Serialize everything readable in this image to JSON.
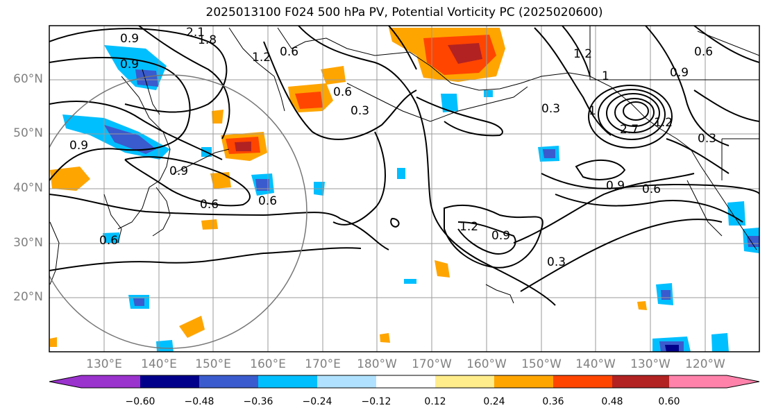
{
  "title": "2025013100 F024 500 hPa PV, Potential Vorticity PC (2025020600)",
  "lat_labels": [
    "60°N",
    "50°N",
    "40°N",
    "30°N",
    "20°N"
  ],
  "lon_labels": [
    "130°E",
    "140°E",
    "150°E",
    "160°E",
    "170°E",
    "180°W",
    "170°W",
    "160°W",
    "150°W",
    "140°W",
    "130°W",
    "120°W"
  ],
  "colorbar": {
    "ticks": [
      "−0.60",
      "−0.48",
      "−0.36",
      "−0.24",
      "−0.12",
      "0.12",
      "0.24",
      "0.36",
      "0.48",
      "0.60"
    ],
    "colors": [
      "#9a32cd",
      "#00008b",
      "#3a5bcd",
      "#00bfff",
      "#b0e2ff",
      "#ffffff",
      "#ffec8b",
      "#ffa500",
      "#ff4500",
      "#b22222",
      "#ff82ab"
    ]
  },
  "contour_labels": [
    "2.1",
    "1.8",
    "0.9",
    "0.9",
    "1.2",
    "0.6",
    "0.6",
    "0.3",
    "0.9",
    "0.9",
    "0.6",
    "0.6",
    "0.6",
    "1.2",
    "0.9",
    "0.3",
    "1.2",
    "0.3",
    "0.9",
    "0.6",
    "0.3",
    "0.6",
    "0.9",
    "1",
    "1",
    "1.2",
    "2.7"
  ]
}
